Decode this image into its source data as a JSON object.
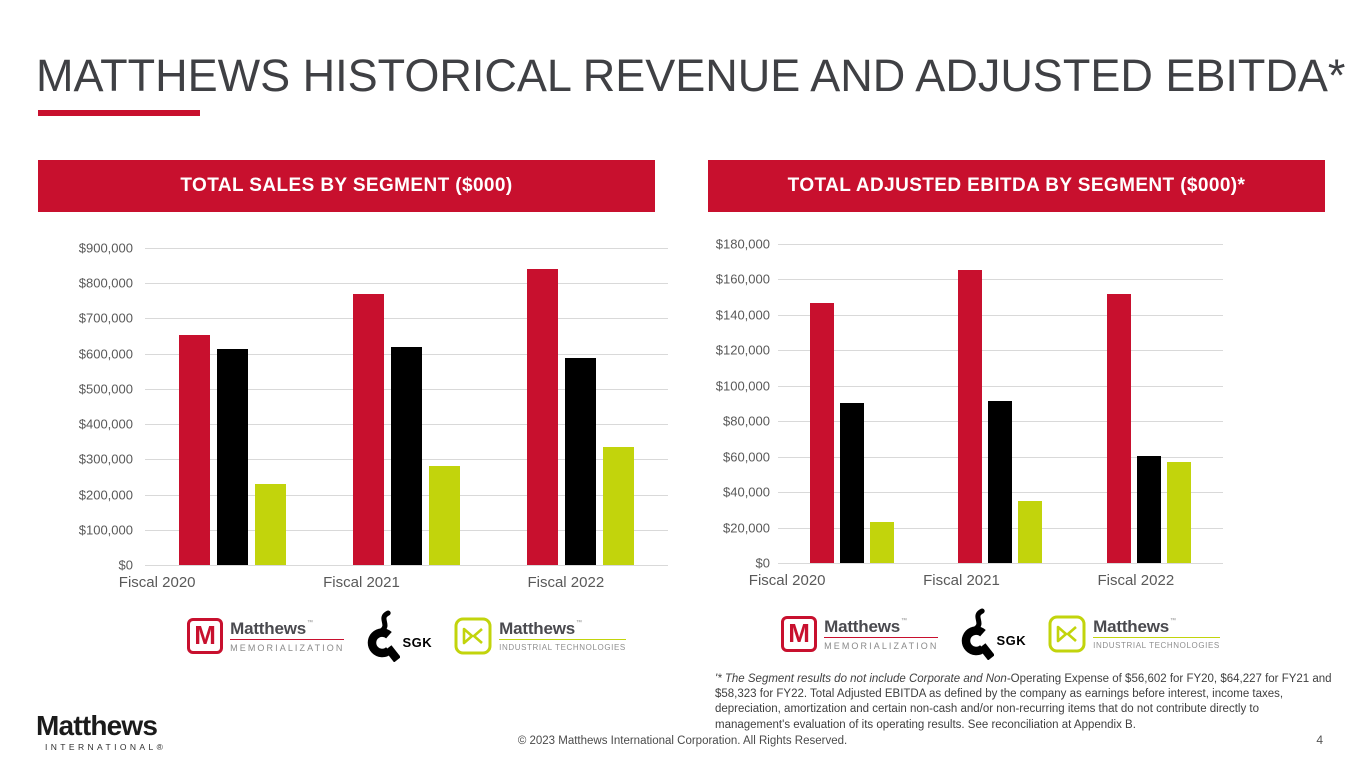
{
  "title": "MATTHEWS HISTORICAL REVENUE AND ADJUSTED EBITDA*",
  "colors": {
    "brand_red": "#C8102E",
    "sgk_black": "#000000",
    "industrial_green": "#C2D40C",
    "title_gray": "#3F4044",
    "axis_gray": "#595959",
    "gridline_gray": "#D9D9D9"
  },
  "chart_data": [
    {
      "type": "bar",
      "title": "TOTAL SALES BY SEGMENT ($000)",
      "categories": [
        "Fiscal 2020",
        "Fiscal 2021",
        "Fiscal 2022"
      ],
      "series": [
        {
          "name": "Matthews Memorialization",
          "color": "#C8102E",
          "values": [
            654000,
            769000,
            840000
          ]
        },
        {
          "name": "SGK",
          "color": "#000000",
          "values": [
            613000,
            619000,
            588000
          ]
        },
        {
          "name": "Matthews Industrial Technologies",
          "color": "#C2D40C",
          "values": [
            229000,
            281000,
            335000
          ]
        }
      ],
      "xlabel": "",
      "ylabel": "",
      "ylim": [
        0,
        900000
      ],
      "ytick_step": 100000,
      "yticks": [
        "$900,000",
        "$800,000",
        "$700,000",
        "$600,000",
        "$500,000",
        "$400,000",
        "$300,000",
        "$200,000",
        "$100,000",
        "$0"
      ],
      "grid": true,
      "legend_position": "bottom",
      "legend": [
        "Matthews Memorialization",
        "SGK",
        "Matthews Industrial Technologies"
      ]
    },
    {
      "type": "bar",
      "title": "TOTAL ADJUSTED EBITDA BY SEGMENT ($000)*",
      "categories": [
        "Fiscal 2020",
        "Fiscal 2021",
        "Fiscal 2022"
      ],
      "series": [
        {
          "name": "Matthews Memorialization",
          "color": "#C8102E",
          "values": [
            146500,
            165500,
            152000
          ]
        },
        {
          "name": "SGK",
          "color": "#000000",
          "values": [
            90500,
            91500,
            60500
          ]
        },
        {
          "name": "Matthews Industrial Technologies",
          "color": "#C2D40C",
          "values": [
            23000,
            35000,
            56800
          ]
        }
      ],
      "xlabel": "",
      "ylabel": "",
      "ylim": [
        0,
        180000
      ],
      "ytick_step": 20000,
      "yticks": [
        "$180,000",
        "$160,000",
        "$140,000",
        "$120,000",
        "$100,000",
        "$80,000",
        "$60,000",
        "$40,000",
        "$20,000",
        "$0"
      ],
      "grid": true,
      "legend_position": "bottom",
      "legend": [
        "Matthews Memorialization",
        "SGK",
        "Matthews Industrial Technologies"
      ]
    }
  ],
  "legend": {
    "memorialization": {
      "mark": "M",
      "brand": "Matthews",
      "tm": "™",
      "sub": "MEMORIALIZATION"
    },
    "sgk": {
      "label": "SGK",
      "tm": "™"
    },
    "industrial": {
      "brand": "Matthews",
      "tm": "™",
      "sub": "INDUSTRIAL TECHNOLOGIES"
    }
  },
  "footnote": {
    "marker": "'* ",
    "italic": "The Segment results do not include Corporate and Non-",
    "regular": "Operating Expense of $56,602 for FY20, $64,227 for FY21 and $58,323 for FY22. Total Adjusted EBITDA as defined by the company as earnings before interest, income taxes, depreciation, amortization and certain non-cash and/or non-recurring items that do not contribute directly to management's evaluation of  its operating results. See reconciliation at Appendix B."
  },
  "footer": {
    "copyright": "© 2023 Matthews International Corporation. All Rights Reserved.",
    "page_number": "4",
    "logo_brand": "Matthews",
    "logo_sub": "INTERNATIONAL®"
  }
}
